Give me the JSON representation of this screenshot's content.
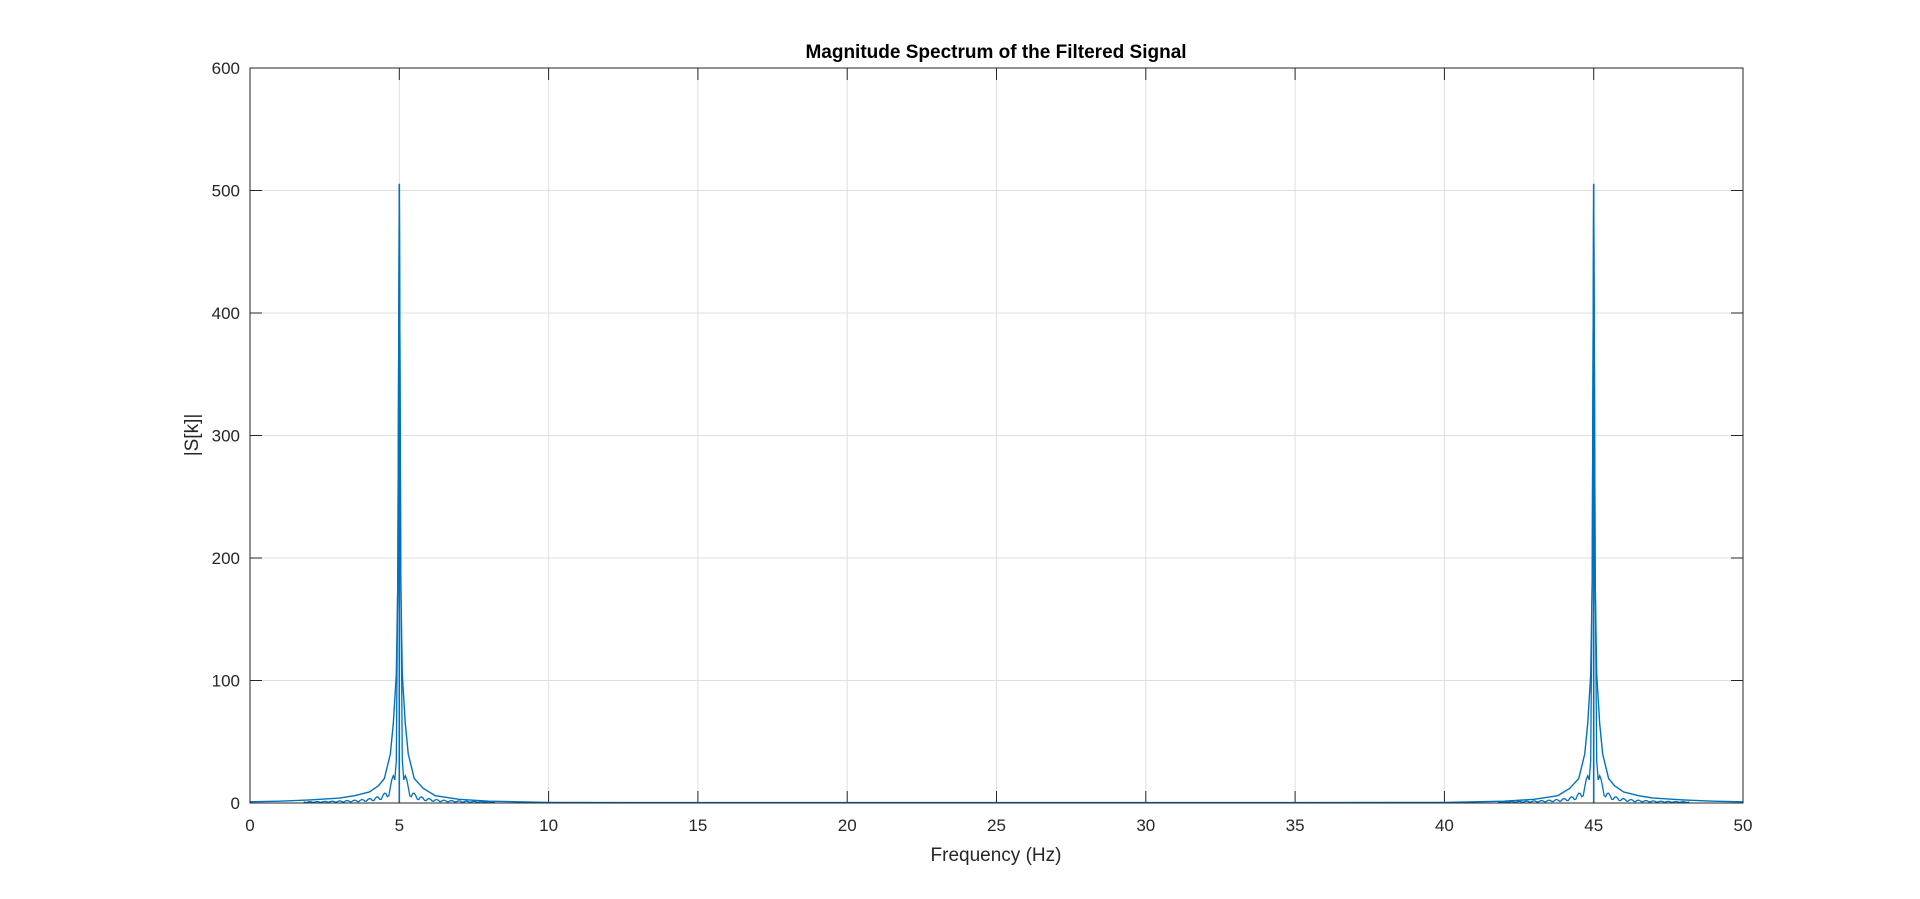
{
  "chart_data": {
    "type": "line",
    "title": "Magnitude Spectrum of the Filtered Signal",
    "xlabel": "Frequency (Hz)",
    "ylabel": "|S[k]|",
    "xlim": [
      0,
      50
    ],
    "ylim": [
      0,
      600
    ],
    "xticks": [
      0,
      5,
      10,
      15,
      20,
      25,
      30,
      35,
      40,
      45,
      50
    ],
    "yticks": [
      0,
      100,
      200,
      300,
      400,
      500,
      600
    ],
    "grid": true,
    "legend": "none",
    "series": [
      {
        "color": "#0072bd",
        "peaks": [
          {
            "x": 5,
            "y": 505
          },
          {
            "x": 45,
            "y": 505
          }
        ],
        "x": [
          0,
          1,
          2,
          3,
          3.5,
          4,
          4.3,
          4.5,
          4.7,
          4.8,
          4.9,
          4.95,
          5,
          5.05,
          5.1,
          5.2,
          5.3,
          5.5,
          5.8,
          6.2,
          7,
          8,
          9,
          10,
          15,
          20,
          25,
          30,
          35,
          40,
          41,
          42,
          43,
          43.8,
          44.2,
          44.5,
          44.7,
          44.8,
          44.9,
          44.95,
          45,
          45.05,
          45.1,
          45.2,
          45.3,
          45.5,
          45.7,
          46,
          46.5,
          47,
          48,
          49,
          50
        ],
        "y": [
          1,
          1.5,
          2.5,
          4,
          6,
          9,
          14,
          20,
          40,
          65,
          105,
          180,
          505,
          180,
          105,
          65,
          40,
          20,
          12,
          6,
          3,
          1.5,
          1,
          0.5,
          0.3,
          0.3,
          0.3,
          0.3,
          0.3,
          0.5,
          1,
          1.5,
          3,
          6,
          12,
          20,
          40,
          65,
          105,
          180,
          505,
          180,
          105,
          65,
          40,
          20,
          14,
          9,
          6,
          4,
          2.5,
          1.5,
          1
        ]
      }
    ]
  }
}
